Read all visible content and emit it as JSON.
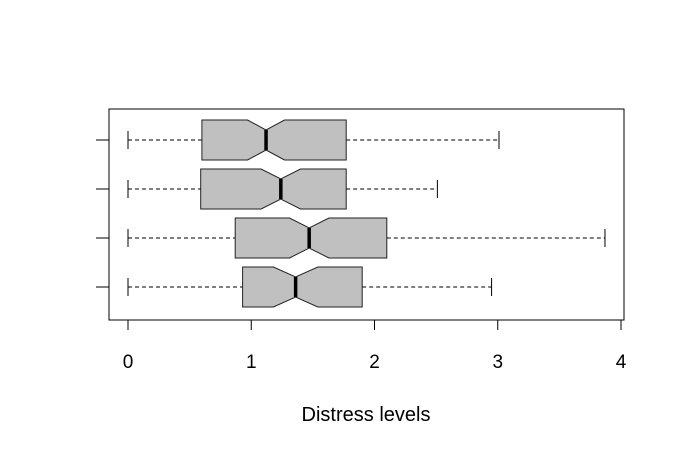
{
  "chart_data": {
    "type": "boxplot",
    "orientation": "horizontal",
    "notched": true,
    "xlabel": "Distress levels",
    "xlim": [
      0,
      4
    ],
    "xticks": [
      0,
      1,
      2,
      3,
      4
    ],
    "xtick_labels": [
      "0",
      "1",
      "2",
      "3",
      "4"
    ],
    "grid": false,
    "box_fill": "#c0c0c0",
    "boxes": [
      {
        "whisker_low": 0,
        "q1": 0.6,
        "median": 1.12,
        "q3": 1.77,
        "whisker_high": 3.01,
        "notch_low": 0.97,
        "notch_high": 1.27
      },
      {
        "whisker_low": 0,
        "q1": 0.59,
        "median": 1.24,
        "q3": 1.77,
        "whisker_high": 2.51,
        "notch_low": 1.08,
        "notch_high": 1.4
      },
      {
        "whisker_low": 0,
        "q1": 0.87,
        "median": 1.47,
        "q3": 2.1,
        "whisker_high": 3.87,
        "notch_low": 1.31,
        "notch_high": 1.63
      },
      {
        "whisker_low": 0,
        "q1": 0.93,
        "median": 1.36,
        "q3": 1.9,
        "whisker_high": 2.95,
        "notch_low": 1.18,
        "notch_high": 1.54
      }
    ]
  }
}
